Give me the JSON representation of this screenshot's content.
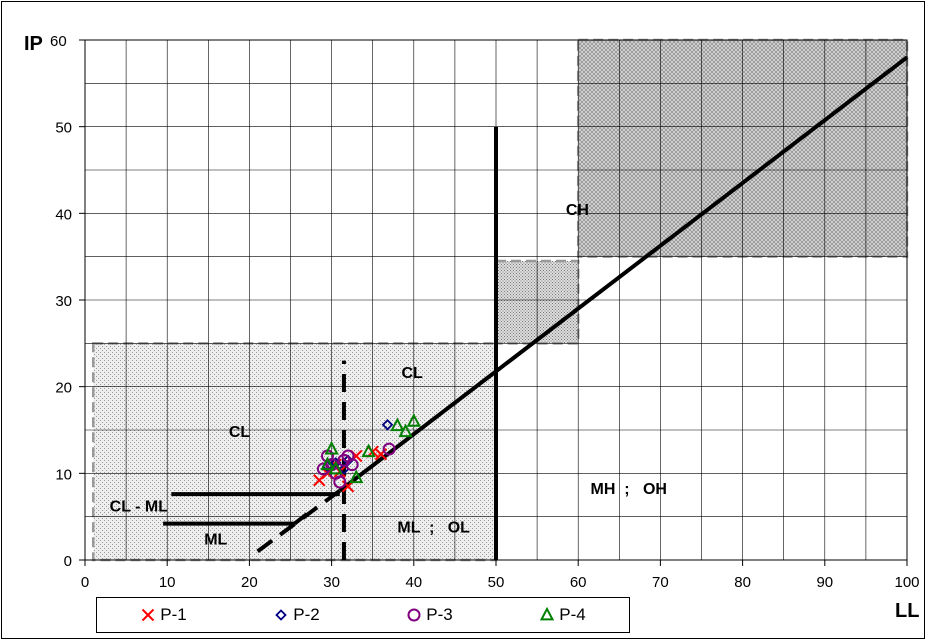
{
  "chart_data": {
    "type": "scatter",
    "title": "",
    "xlabel": "LL",
    "ylabel": "IP",
    "xlim": [
      0,
      100
    ],
    "ylim": [
      0,
      60
    ],
    "x_ticks": [
      0,
      10,
      20,
      30,
      40,
      50,
      60,
      70,
      80,
      90,
      100
    ],
    "y_ticks": [
      0,
      10,
      20,
      30,
      40,
      50,
      60
    ],
    "grid": true,
    "legend_position": "bottom",
    "series": [
      {
        "name": "P-1",
        "marker": "x",
        "color": "#ff0000",
        "points": [
          [
            28.5,
            9.2
          ],
          [
            29.5,
            10.0
          ],
          [
            30.5,
            11.0
          ],
          [
            31.0,
            10.2
          ],
          [
            32.0,
            8.5
          ],
          [
            33.0,
            12.0
          ],
          [
            35.0,
            12.5
          ],
          [
            36.0,
            12.2
          ]
        ]
      },
      {
        "name": "P-2",
        "marker": "diamond",
        "color": "#000080",
        "points": [
          [
            29.5,
            10.8
          ],
          [
            30.5,
            11.2
          ],
          [
            31.5,
            10.5
          ],
          [
            32.0,
            11.5
          ],
          [
            36.8,
            15.6
          ]
        ]
      },
      {
        "name": "P-3",
        "marker": "circle",
        "color": "#800080",
        "points": [
          [
            29.0,
            10.5
          ],
          [
            29.5,
            12.0
          ],
          [
            30.0,
            11.0
          ],
          [
            30.5,
            10.0
          ],
          [
            31.0,
            9.0
          ],
          [
            31.5,
            11.5
          ],
          [
            32.0,
            12.0
          ],
          [
            32.5,
            11.0
          ],
          [
            37.0,
            12.8
          ]
        ]
      },
      {
        "name": "P-4",
        "marker": "triangle",
        "color": "#008000",
        "points": [
          [
            29.5,
            11.0
          ],
          [
            30.0,
            12.8
          ],
          [
            30.5,
            10.5
          ],
          [
            33.0,
            9.5
          ],
          [
            34.5,
            12.5
          ],
          [
            38.0,
            15.5
          ],
          [
            39.0,
            14.8
          ],
          [
            40.0,
            16.0
          ]
        ]
      }
    ],
    "lines": [
      {
        "name": "a-line",
        "style": "solid",
        "points": [
          [
            31,
            8
          ],
          [
            100,
            58
          ]
        ]
      },
      {
        "name": "a-line-extension",
        "style": "dashed",
        "points": [
          [
            21,
            1
          ],
          [
            31,
            8
          ]
        ]
      },
      {
        "name": "ll-50-line",
        "style": "solid",
        "points": [
          [
            50,
            0
          ],
          [
            50,
            50
          ]
        ]
      },
      {
        "name": "ll-31-line",
        "style": "dashed",
        "points": [
          [
            31.5,
            0
          ],
          [
            31.5,
            23
          ]
        ]
      },
      {
        "name": "ip-7.5-line",
        "style": "solid",
        "points": [
          [
            10.5,
            7.6
          ],
          [
            31,
            7.6
          ]
        ]
      },
      {
        "name": "ip-4-line",
        "style": "solid",
        "points": [
          [
            9.5,
            4.2
          ],
          [
            25.5,
            4.2
          ]
        ]
      },
      {
        "name": "ip-4-connector",
        "style": "solid",
        "points": [
          [
            25.5,
            4.2
          ],
          [
            27,
            5.3
          ]
        ]
      }
    ],
    "regions": [
      {
        "name": "low-plasticity-zone",
        "x": [
          1,
          50
        ],
        "y": [
          0,
          25
        ],
        "pattern": "light-dots"
      },
      {
        "name": "transition-zone",
        "x": [
          50,
          60
        ],
        "y": [
          25,
          34.5
        ],
        "pattern": "dense-dots"
      },
      {
        "name": "high-plasticity-zone",
        "x": [
          60,
          100
        ],
        "y": [
          35,
          60
        ],
        "pattern": "crosshatch"
      }
    ],
    "annotations": [
      {
        "text": "CH",
        "x": 58.5,
        "y": 39.8
      },
      {
        "text": "CL",
        "x": 38.5,
        "y": 21.0
      },
      {
        "text": "CL",
        "x": 17.5,
        "y": 14.2
      },
      {
        "text": "CL - ML",
        "x": 3.0,
        "y": 5.6
      },
      {
        "text": "ML",
        "x": 14.5,
        "y": 1.8
      },
      {
        "text": "ML  ;   OL",
        "x": 38.0,
        "y": 3.2
      },
      {
        "text": "MH  ;   OH",
        "x": 61.5,
        "y": 7.6
      }
    ]
  }
}
